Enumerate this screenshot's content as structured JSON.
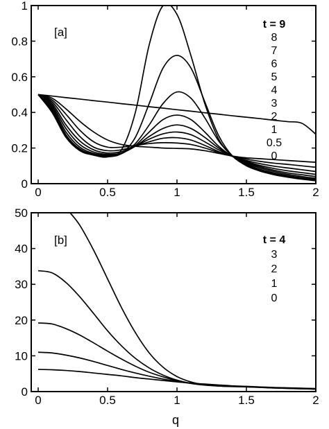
{
  "chart_data": [
    {
      "type": "line",
      "panel_label": "[a]",
      "xlim": [
        -0.05,
        2.0
      ],
      "ylim": [
        0,
        1
      ],
      "xticks": [
        "0",
        "0.5",
        "1",
        "1.5",
        "2"
      ],
      "yticks": [
        "0",
        "0.2",
        "0.4",
        "0.6",
        "0.8",
        "1"
      ],
      "legend_title": "t = 9",
      "legend_entries": [
        "8",
        "7",
        "6",
        "5",
        "4",
        "3",
        "2",
        "1",
        "0.5",
        "0"
      ],
      "legend_placement": "top-right, inside",
      "grid": false,
      "series": [
        {
          "label": "0",
          "x": [
            0,
            0.1,
            0.2,
            0.3,
            0.4,
            0.5,
            0.6,
            0.7,
            0.8,
            0.9,
            1.0,
            1.1,
            1.2,
            1.3,
            1.4,
            1.5,
            1.6,
            1.7,
            1.8,
            1.9,
            2.0
          ],
          "y": [
            0.5,
            0.492,
            0.483,
            0.475,
            0.466,
            0.458,
            0.449,
            0.441,
            0.432,
            0.424,
            0.415,
            0.407,
            0.398,
            0.39,
            0.381,
            0.373,
            0.365,
            0.356,
            0.348,
            0.339,
            0.278
          ]
        },
        {
          "label": "0.5",
          "x": [
            0,
            0.1,
            0.2,
            0.3,
            0.4,
            0.5,
            0.6,
            0.7,
            0.8,
            0.9,
            1.0,
            1.1,
            1.2,
            1.3,
            1.4,
            1.5,
            1.6,
            1.7,
            1.8,
            1.9,
            2.0
          ],
          "y": [
            0.5,
            0.48,
            0.42,
            0.35,
            0.29,
            0.245,
            0.22,
            0.21,
            0.205,
            0.2,
            0.198,
            0.195,
            0.185,
            0.17,
            0.155,
            0.145,
            0.14,
            0.135,
            0.13,
            0.125,
            0.12
          ]
        },
        {
          "label": "1",
          "x": [
            0,
            0.1,
            0.2,
            0.3,
            0.4,
            0.5,
            0.6,
            0.7,
            0.8,
            0.9,
            1.0,
            1.1,
            1.2,
            1.3,
            1.4,
            1.5,
            1.6,
            1.7,
            1.8,
            1.9,
            2.0
          ],
          "y": [
            0.5,
            0.47,
            0.39,
            0.3,
            0.235,
            0.205,
            0.205,
            0.215,
            0.225,
            0.23,
            0.228,
            0.22,
            0.2,
            0.175,
            0.155,
            0.138,
            0.125,
            0.115,
            0.108,
            0.1,
            0.092
          ]
        },
        {
          "label": "2",
          "x": [
            0,
            0.1,
            0.2,
            0.3,
            0.4,
            0.5,
            0.6,
            0.7,
            0.8,
            0.9,
            1.0,
            1.1,
            1.2,
            1.3,
            1.4,
            1.5,
            1.6,
            1.7,
            1.8,
            1.9,
            2.0
          ],
          "y": [
            0.5,
            0.46,
            0.36,
            0.265,
            0.205,
            0.185,
            0.19,
            0.21,
            0.235,
            0.255,
            0.258,
            0.245,
            0.215,
            0.18,
            0.153,
            0.13,
            0.112,
            0.098,
            0.088,
            0.078,
            0.068
          ]
        },
        {
          "label": "3",
          "x": [
            0,
            0.1,
            0.2,
            0.3,
            0.4,
            0.5,
            0.6,
            0.7,
            0.8,
            0.9,
            1.0,
            1.1,
            1.2,
            1.3,
            1.4,
            1.5,
            1.6,
            1.7,
            1.8,
            1.9,
            2.0
          ],
          "y": [
            0.5,
            0.45,
            0.33,
            0.24,
            0.19,
            0.172,
            0.18,
            0.21,
            0.25,
            0.28,
            0.29,
            0.275,
            0.235,
            0.19,
            0.153,
            0.125,
            0.102,
            0.085,
            0.072,
            0.062,
            0.052
          ]
        },
        {
          "label": "4",
          "x": [
            0,
            0.1,
            0.2,
            0.3,
            0.4,
            0.5,
            0.6,
            0.7,
            0.8,
            0.9,
            1.0,
            1.1,
            1.2,
            1.3,
            1.4,
            1.5,
            1.6,
            1.7,
            1.8,
            1.9,
            2.0
          ],
          "y": [
            0.5,
            0.44,
            0.31,
            0.22,
            0.178,
            0.165,
            0.172,
            0.21,
            0.265,
            0.31,
            0.33,
            0.31,
            0.26,
            0.2,
            0.153,
            0.12,
            0.095,
            0.075,
            0.06,
            0.05,
            0.04
          ]
        },
        {
          "label": "5",
          "x": [
            0,
            0.1,
            0.2,
            0.3,
            0.4,
            0.5,
            0.6,
            0.7,
            0.8,
            0.9,
            1.0,
            1.1,
            1.2,
            1.3,
            1.4,
            1.5,
            1.6,
            1.7,
            1.8,
            1.9,
            2.0
          ],
          "y": [
            0.5,
            0.43,
            0.29,
            0.205,
            0.17,
            0.16,
            0.17,
            0.215,
            0.29,
            0.36,
            0.385,
            0.36,
            0.29,
            0.21,
            0.153,
            0.115,
            0.088,
            0.068,
            0.052,
            0.04,
            0.03
          ]
        },
        {
          "label": "6",
          "x": [
            0,
            0.1,
            0.2,
            0.3,
            0.4,
            0.5,
            0.6,
            0.7,
            0.8,
            0.9,
            1.0,
            1.1,
            1.2,
            1.3,
            1.4,
            1.5,
            1.6,
            1.7,
            1.8,
            1.9,
            2.0
          ],
          "y": [
            0.5,
            0.42,
            0.275,
            0.195,
            0.165,
            0.155,
            0.168,
            0.225,
            0.33,
            0.45,
            0.515,
            0.48,
            0.37,
            0.24,
            0.155,
            0.11,
            0.08,
            0.06,
            0.045,
            0.033,
            0.024
          ]
        },
        {
          "label": "7",
          "x": [
            0,
            0.1,
            0.2,
            0.3,
            0.4,
            0.5,
            0.6,
            0.7,
            0.8,
            0.9,
            1.0,
            1.1,
            1.2,
            1.3,
            1.4,
            1.5,
            1.6,
            1.7,
            1.8,
            1.9,
            2.0
          ],
          "y": [
            0.5,
            0.41,
            0.265,
            0.19,
            0.162,
            0.152,
            0.17,
            0.26,
            0.45,
            0.65,
            0.72,
            0.65,
            0.46,
            0.27,
            0.155,
            0.105,
            0.074,
            0.054,
            0.04,
            0.028,
            0.019
          ]
        },
        {
          "label": "8",
          "x": [
            0,
            0.1,
            0.2,
            0.3,
            0.4,
            0.5,
            0.6,
            0.7,
            0.8,
            0.9,
            1.0,
            1.1,
            1.2,
            1.3,
            1.4,
            1.5,
            1.6,
            1.7,
            1.8,
            1.9,
            2.0
          ],
          "y": [
            0.5,
            0.4,
            0.26,
            0.185,
            0.16,
            0.15,
            0.19,
            0.4,
            0.78,
            1.0,
            0.95,
            0.72,
            0.45,
            0.25,
            0.155,
            0.1,
            0.07,
            0.05,
            0.036,
            0.025,
            0.016
          ]
        }
      ]
    },
    {
      "type": "line",
      "panel_label": "[b]",
      "xlabel": "q",
      "xlim": [
        -0.05,
        2.0
      ],
      "ylim": [
        0,
        50
      ],
      "xticks": [
        "0",
        "0.5",
        "1",
        "1.5",
        "2"
      ],
      "yticks": [
        "0",
        "10",
        "20",
        "30",
        "40",
        "50"
      ],
      "legend_title": "t = 4",
      "legend_entries": [
        "3",
        "2",
        "1",
        "0"
      ],
      "legend_placement": "top-right, inside",
      "grid": false,
      "series": [
        {
          "label": "0",
          "x": [
            0,
            0.1,
            0.2,
            0.3,
            0.4,
            0.5,
            0.6,
            0.7,
            0.8,
            0.9,
            1.0,
            1.1,
            1.2,
            1.3,
            1.4,
            1.5,
            1.6,
            1.7,
            1.8,
            1.9,
            2.0
          ],
          "y": [
            6.2,
            6.1,
            5.9,
            5.6,
            5.2,
            4.8,
            4.4,
            3.9,
            3.5,
            3.1,
            2.7,
            2.4,
            2.1,
            1.85,
            1.6,
            1.45,
            1.3,
            1.15,
            1.05,
            0.95,
            0.85
          ]
        },
        {
          "label": "1",
          "x": [
            0,
            0.1,
            0.2,
            0.3,
            0.4,
            0.5,
            0.6,
            0.7,
            0.8,
            0.9,
            1.0,
            1.1,
            1.2,
            1.3,
            1.4,
            1.5,
            1.6,
            1.7,
            1.8,
            1.9,
            2.0
          ],
          "y": [
            11.0,
            10.8,
            10.2,
            9.4,
            8.4,
            7.3,
            6.2,
            5.2,
            4.3,
            3.5,
            2.8,
            2.3,
            1.9,
            1.65,
            1.5,
            1.4,
            1.25,
            1.1,
            1.0,
            0.9,
            0.8
          ]
        },
        {
          "label": "2",
          "x": [
            0,
            0.1,
            0.2,
            0.3,
            0.4,
            0.5,
            0.6,
            0.7,
            0.8,
            0.9,
            1.0,
            1.1,
            1.2,
            1.3,
            1.4,
            1.5,
            1.6,
            1.7,
            1.8,
            1.9,
            2.0
          ],
          "y": [
            19.2,
            18.9,
            17.6,
            15.8,
            13.6,
            11.3,
            9.1,
            7.1,
            5.4,
            4.1,
            3.0,
            2.3,
            1.85,
            1.6,
            1.45,
            1.35,
            1.2,
            1.05,
            0.95,
            0.85,
            0.75
          ]
        },
        {
          "label": "3",
          "x": [
            0,
            0.1,
            0.2,
            0.3,
            0.4,
            0.5,
            0.6,
            0.7,
            0.8,
            0.9,
            1.0,
            1.1,
            1.2,
            1.3,
            1.4,
            1.5,
            1.6,
            1.7,
            1.8,
            1.9,
            2.0
          ],
          "y": [
            33.8,
            33.2,
            30.5,
            26.5,
            21.8,
            17.0,
            12.8,
            9.3,
            6.6,
            4.6,
            3.2,
            2.3,
            1.8,
            1.55,
            1.42,
            1.32,
            1.18,
            1.02,
            0.9,
            0.8,
            0.7
          ]
        },
        {
          "label": "4",
          "x": [
            0.23,
            0.3,
            0.4,
            0.5,
            0.6,
            0.7,
            0.8,
            0.9,
            1.0,
            1.1,
            1.2,
            1.3,
            1.4,
            1.5,
            1.6,
            1.7,
            1.8,
            1.9,
            2.0
          ],
          "y": [
            50,
            46.5,
            39.5,
            31.5,
            23.5,
            16.5,
            10.8,
            6.8,
            4.2,
            2.7,
            1.9,
            1.55,
            1.4,
            1.3,
            1.15,
            1.0,
            0.88,
            0.78,
            0.68
          ]
        }
      ]
    }
  ]
}
